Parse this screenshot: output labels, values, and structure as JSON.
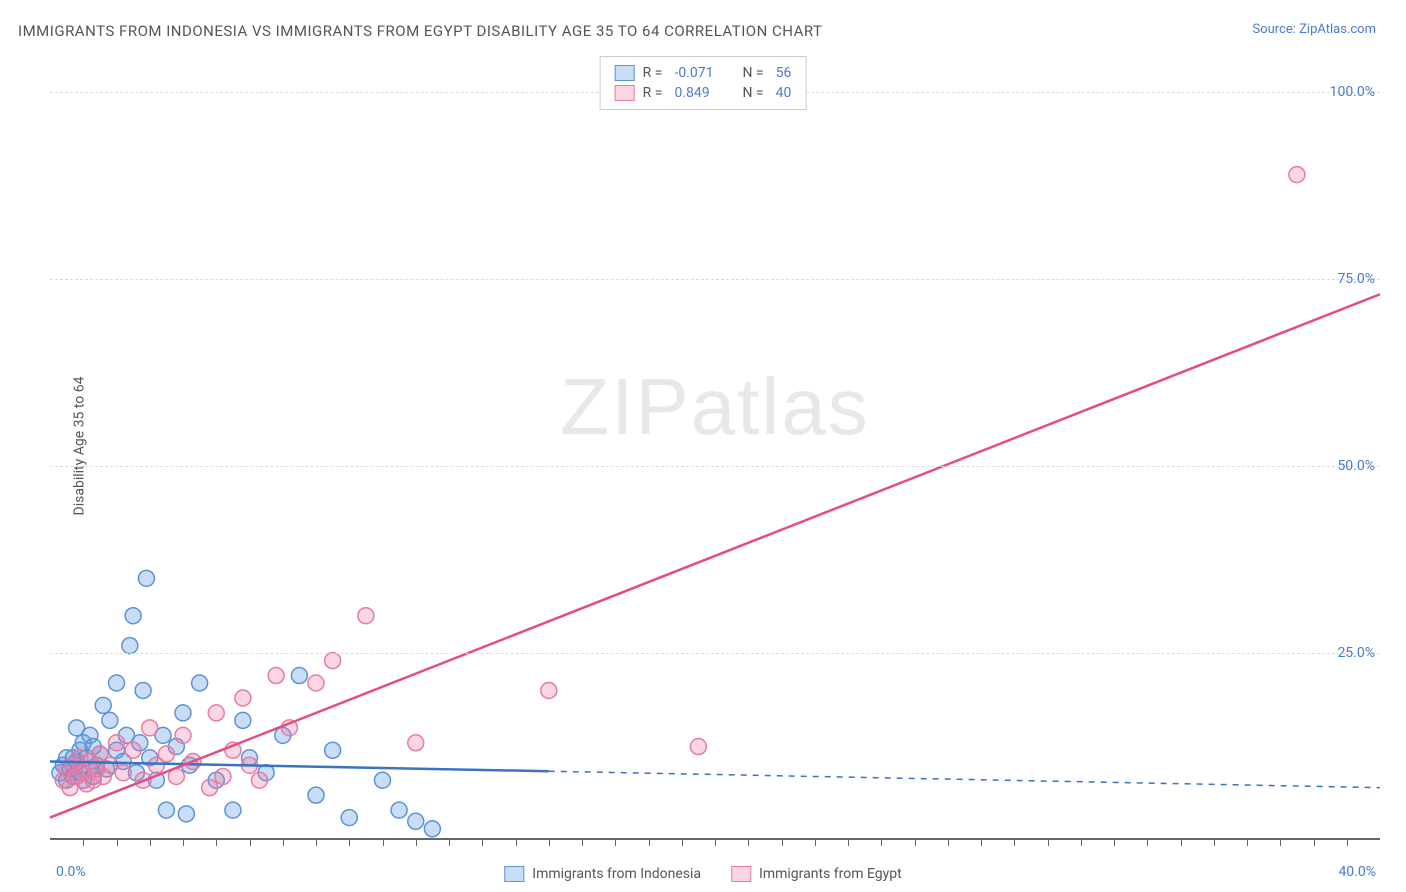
{
  "title": "IMMIGRANTS FROM INDONESIA VS IMMIGRANTS FROM EGYPT DISABILITY AGE 35 TO 64 CORRELATION CHART",
  "source": "Source: ZipAtlas.com",
  "ylabel": "Disability Age 35 to 64",
  "watermark_a": "ZIP",
  "watermark_b": "atlas",
  "chart": {
    "type": "scatter",
    "xlim": [
      0,
      40
    ],
    "ylim": [
      0,
      105
    ],
    "y_ticks": [
      25,
      50,
      75,
      100
    ],
    "y_tick_labels": [
      "25.0%",
      "50.0%",
      "75.0%",
      "100.0%"
    ],
    "x_label_min": "0.0%",
    "x_label_max": "40.0%",
    "x_minor_tick_step": 1,
    "background_color": "#ffffff",
    "grid_color": "#dddddd",
    "axis_color": "#666666",
    "tick_label_color": "#4a7bd0",
    "series": [
      {
        "name": "Immigrants from Indonesia",
        "color_fill": "rgba(100,160,230,0.35)",
        "color_stroke": "#5a93d6",
        "line_color": "#3973c6",
        "r_value": "-0.071",
        "n_value": "56",
        "marker_radius": 8,
        "trend": {
          "x1": 0,
          "y1": 10.5,
          "x2": 15,
          "y2": 9.2,
          "dash_x2": 40,
          "dash_y2": 7.0
        },
        "points": [
          [
            0.3,
            9
          ],
          [
            0.4,
            10
          ],
          [
            0.5,
            8
          ],
          [
            0.5,
            11
          ],
          [
            0.6,
            9.5
          ],
          [
            0.7,
            8.5
          ],
          [
            0.7,
            11
          ],
          [
            0.8,
            10.5
          ],
          [
            0.8,
            15
          ],
          [
            0.9,
            9
          ],
          [
            0.9,
            12
          ],
          [
            1.0,
            8
          ],
          [
            1.0,
            13
          ],
          [
            1.1,
            11
          ],
          [
            1.2,
            9.5
          ],
          [
            1.2,
            14
          ],
          [
            1.3,
            8.5
          ],
          [
            1.3,
            12.5
          ],
          [
            1.4,
            10
          ],
          [
            1.5,
            11.5
          ],
          [
            1.6,
            18
          ],
          [
            1.7,
            9.5
          ],
          [
            1.8,
            16
          ],
          [
            2.0,
            12
          ],
          [
            2.0,
            21
          ],
          [
            2.2,
            10.5
          ],
          [
            2.3,
            14
          ],
          [
            2.4,
            26
          ],
          [
            2.5,
            30
          ],
          [
            2.6,
            9
          ],
          [
            2.7,
            13
          ],
          [
            2.8,
            20
          ],
          [
            2.9,
            35
          ],
          [
            3.0,
            11
          ],
          [
            3.2,
            8
          ],
          [
            3.4,
            14
          ],
          [
            3.5,
            4
          ],
          [
            3.8,
            12.5
          ],
          [
            4.0,
            17
          ],
          [
            4.1,
            3.5
          ],
          [
            4.2,
            10
          ],
          [
            4.5,
            21
          ],
          [
            5.0,
            8
          ],
          [
            5.5,
            4
          ],
          [
            5.8,
            16
          ],
          [
            6.0,
            11
          ],
          [
            6.5,
            9
          ],
          [
            7.0,
            14
          ],
          [
            7.5,
            22
          ],
          [
            8.0,
            6
          ],
          [
            8.5,
            12
          ],
          [
            9.0,
            3
          ],
          [
            10.0,
            8
          ],
          [
            10.5,
            4
          ],
          [
            11.0,
            2.5
          ],
          [
            11.5,
            1.5
          ]
        ]
      },
      {
        "name": "Immigrants from Egypt",
        "color_fill": "rgba(235,120,160,0.3)",
        "color_stroke": "#e77aa5",
        "line_color": "#e54b84",
        "r_value": "0.849",
        "n_value": "40",
        "marker_radius": 8,
        "trend": {
          "x1": 0,
          "y1": 3,
          "x2": 40,
          "y2": 73
        },
        "points": [
          [
            0.4,
            8
          ],
          [
            0.5,
            9.5
          ],
          [
            0.6,
            7
          ],
          [
            0.7,
            10
          ],
          [
            0.8,
            8.5
          ],
          [
            0.9,
            11
          ],
          [
            1.0,
            9
          ],
          [
            1.1,
            7.5
          ],
          [
            1.2,
            10.5
          ],
          [
            1.3,
            8
          ],
          [
            1.4,
            9.5
          ],
          [
            1.5,
            11.5
          ],
          [
            1.6,
            8.5
          ],
          [
            1.8,
            10
          ],
          [
            2.0,
            13
          ],
          [
            2.2,
            9
          ],
          [
            2.5,
            12
          ],
          [
            2.8,
            8
          ],
          [
            3.0,
            15
          ],
          [
            3.2,
            10
          ],
          [
            3.5,
            11.5
          ],
          [
            3.8,
            8.5
          ],
          [
            4.0,
            14
          ],
          [
            4.3,
            10.5
          ],
          [
            4.8,
            7
          ],
          [
            5.0,
            17
          ],
          [
            5.2,
            8.5
          ],
          [
            5.5,
            12
          ],
          [
            5.8,
            19
          ],
          [
            6.0,
            10
          ],
          [
            6.3,
            8
          ],
          [
            6.8,
            22
          ],
          [
            7.2,
            15
          ],
          [
            8.0,
            21
          ],
          [
            8.5,
            24
          ],
          [
            9.5,
            30
          ],
          [
            11.0,
            13
          ],
          [
            15.0,
            20
          ],
          [
            19.5,
            12.5
          ],
          [
            37.5,
            89
          ]
        ]
      }
    ]
  },
  "legend": {
    "r_label": "R =",
    "n_label": "N ="
  }
}
